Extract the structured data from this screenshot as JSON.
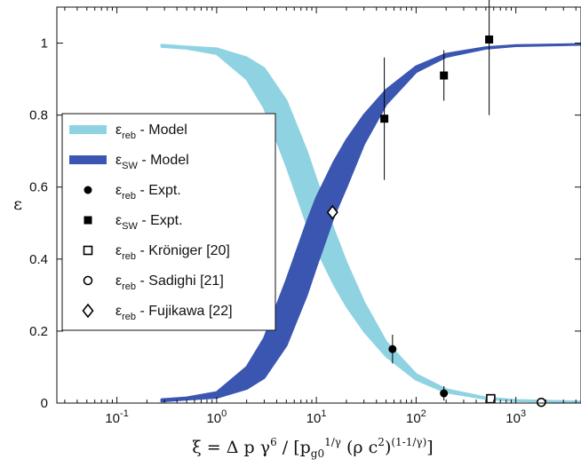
{
  "chart_data": {
    "type": "line",
    "xlabel": "ξ = Δ p γ^6 / [p_g0^(1/γ) (ρ c^2)^(1-1/γ)]",
    "ylabel": "ε",
    "xscale": "log",
    "xlim": [
      0.025,
      4500
    ],
    "ylim": [
      0,
      1.1
    ],
    "x_ticks": [
      {
        "value": 0.1,
        "base": "10",
        "exp": "-1"
      },
      {
        "value": 1,
        "base": "10",
        "exp": "0"
      },
      {
        "value": 10,
        "base": "10",
        "exp": "1"
      },
      {
        "value": 100,
        "base": "10",
        "exp": "2"
      },
      {
        "value": 1000,
        "base": "10",
        "exp": "3"
      }
    ],
    "y_ticks": [
      "0",
      "0.2",
      "0.4",
      "0.6",
      "0.8",
      "1"
    ],
    "grid": false,
    "legend_position": "left-center",
    "series": [
      {
        "name": "ε_reb - Model",
        "kind": "band",
        "color": "#8fd3e3",
        "x": [
          0.28,
          0.5,
          1,
          2,
          3,
          5,
          8,
          10,
          15,
          20,
          30,
          50,
          100,
          200,
          500,
          1000,
          4500
        ],
        "lower": [
          0.99,
          0.985,
          0.97,
          0.9,
          0.82,
          0.66,
          0.5,
          0.43,
          0.33,
          0.27,
          0.2,
          0.13,
          0.065,
          0.03,
          0.012,
          0.006,
          0.003
        ],
        "upper": [
          0.995,
          0.99,
          0.985,
          0.96,
          0.93,
          0.84,
          0.7,
          0.62,
          0.48,
          0.39,
          0.28,
          0.17,
          0.08,
          0.038,
          0.015,
          0.008,
          0.004
        ]
      },
      {
        "name": "ε_SW - Model",
        "kind": "band",
        "color": "#3a56b0",
        "x": [
          0.28,
          0.5,
          1,
          2,
          3,
          5,
          8,
          10,
          15,
          20,
          30,
          50,
          100,
          200,
          500,
          1000,
          4500
        ],
        "lower": [
          0.005,
          0.01,
          0.015,
          0.04,
          0.07,
          0.16,
          0.3,
          0.38,
          0.52,
          0.6,
          0.72,
          0.83,
          0.92,
          0.962,
          0.985,
          0.992,
          0.996
        ],
        "upper": [
          0.01,
          0.015,
          0.03,
          0.1,
          0.18,
          0.34,
          0.5,
          0.57,
          0.67,
          0.73,
          0.8,
          0.87,
          0.935,
          0.97,
          0.988,
          0.994,
          0.997
        ]
      },
      {
        "name": "ε_reb - Expt.",
        "kind": "marker",
        "marker": "filled-circle",
        "points": [
          {
            "x": 58,
            "y": 0.15,
            "err": 0.04
          },
          {
            "x": 190,
            "y": 0.027,
            "err": 0.02
          }
        ]
      },
      {
        "name": "ε_SW - Expt.",
        "kind": "marker",
        "marker": "filled-square",
        "points": [
          {
            "x": 48,
            "y": 0.79,
            "err": 0.17
          },
          {
            "x": 190,
            "y": 0.91,
            "err": 0.07
          },
          {
            "x": 540,
            "y": 1.01,
            "err": 0.21
          }
        ]
      },
      {
        "name": "ε_reb - Kröniger [20]",
        "kind": "marker",
        "marker": "open-square",
        "points": [
          {
            "x": 560,
            "y": 0.012
          }
        ]
      },
      {
        "name": "ε_reb - Sadighi [21]",
        "kind": "marker",
        "marker": "open-circle",
        "points": [
          {
            "x": 1800,
            "y": 0.002
          }
        ]
      },
      {
        "name": "ε_reb - Fujikawa [22]",
        "kind": "marker",
        "marker": "open-diamond",
        "points": [
          {
            "x": 14.5,
            "y": 0.53
          }
        ]
      }
    ],
    "legend": [
      {
        "base": "ε",
        "sub": "reb",
        "text": " - Model",
        "swatch": "band-light"
      },
      {
        "base": "ε",
        "sub": "SW",
        "text": " - Model",
        "swatch": "band-dark"
      },
      {
        "base": "ε",
        "sub": "reb",
        "text": " - Expt.",
        "swatch": "filled-circle"
      },
      {
        "base": "ε",
        "sub": "SW",
        "text": " - Expt.",
        "swatch": "filled-square"
      },
      {
        "base": "ε",
        "sub": "reb",
        "text": " - Kröniger [20]",
        "swatch": "open-square"
      },
      {
        "base": "ε",
        "sub": "reb",
        "text": " - Sadighi [21]",
        "swatch": "open-circle"
      },
      {
        "base": "ε",
        "sub": "reb",
        "text": " - Fujikawa [22]",
        "swatch": "open-diamond"
      }
    ],
    "xlabel_parts": {
      "lead": "ξ = Δ p γ",
      "sup1": "6",
      "mid1": " / [p",
      "sub1": "g0",
      "sup2": "1/γ",
      "mid2": " (ρ c",
      "sup3": "2",
      "mid3": ")",
      "sup4": "(1-1/γ)",
      "tail": "]"
    }
  }
}
